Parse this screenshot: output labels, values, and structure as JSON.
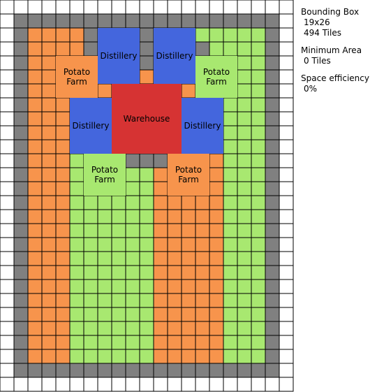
{
  "grid": {
    "cols": 21,
    "rows": 28,
    "colors": {
      "empty": "#ffffff",
      "border": "#808080",
      "orange": "#f7944c",
      "green": "#a8e870",
      "distillery": "#4466dd",
      "warehouse": "#d63333",
      "line": "#000000"
    }
  },
  "buildings": [
    {
      "name": "building-distillery",
      "label": "Distillery",
      "lines": [
        "Distillery"
      ],
      "color": "distillery",
      "c": 7,
      "r": 2,
      "w": 3,
      "h": 4
    },
    {
      "name": "building-distillery",
      "label": "Distillery",
      "lines": [
        "Distillery"
      ],
      "color": "distillery",
      "c": 11,
      "r": 2,
      "w": 3,
      "h": 4
    },
    {
      "name": "building-potato-farm",
      "label": "Potato Farm",
      "lines": [
        "Potato",
        "Farm"
      ],
      "color": "orange",
      "c": 4,
      "r": 4,
      "w": 3,
      "h": 3
    },
    {
      "name": "building-potato-farm",
      "label": "Potato Farm",
      "lines": [
        "Potato",
        "Farm"
      ],
      "color": "green",
      "c": 14,
      "r": 4,
      "w": 3,
      "h": 3
    },
    {
      "name": "building-warehouse",
      "label": "Warehouse",
      "lines": [
        "Warehouse"
      ],
      "color": "warehouse",
      "c": 8,
      "r": 6,
      "w": 5,
      "h": 5
    },
    {
      "name": "building-distillery",
      "label": "Distillery",
      "lines": [
        "Distillery"
      ],
      "color": "distillery",
      "c": 5,
      "r": 7,
      "w": 3,
      "h": 4
    },
    {
      "name": "building-distillery",
      "label": "Distillery",
      "lines": [
        "Distillery"
      ],
      "color": "distillery",
      "c": 13,
      "r": 7,
      "w": 3,
      "h": 4
    },
    {
      "name": "building-potato-farm",
      "label": "Potato Farm",
      "lines": [
        "Potato",
        "Farm"
      ],
      "color": "green",
      "c": 6,
      "r": 11,
      "w": 3,
      "h": 3
    },
    {
      "name": "building-potato-farm",
      "label": "Potato Farm",
      "lines": [
        "Potato",
        "Farm"
      ],
      "color": "orange",
      "c": 12,
      "r": 11,
      "w": 3,
      "h": 3
    }
  ],
  "stats": [
    {
      "label": "Bounding Box",
      "values": [
        "19x26",
        "494 Tiles"
      ]
    },
    {
      "label": "Minimum Area",
      "values": [
        "0 Tiles"
      ]
    },
    {
      "label": "Space efficiency",
      "values": [
        "0%"
      ]
    }
  ]
}
